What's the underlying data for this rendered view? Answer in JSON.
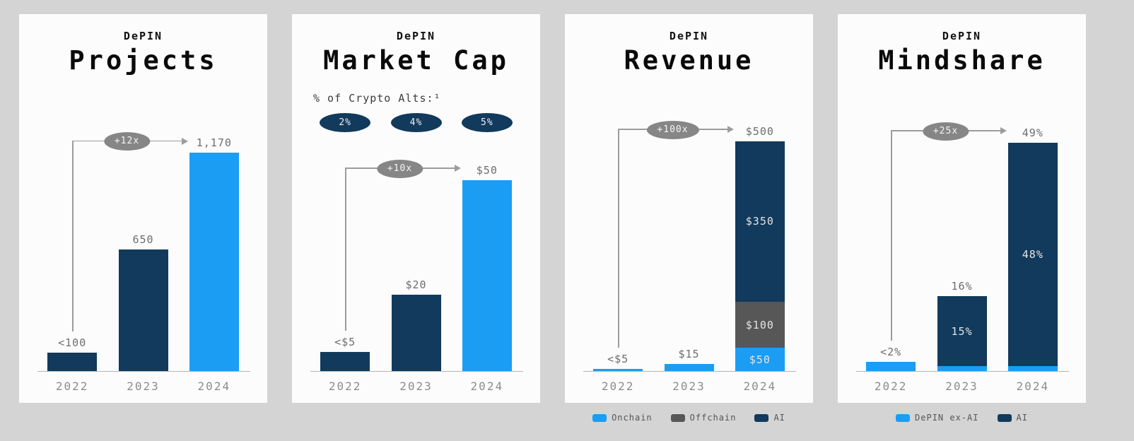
{
  "colors": {
    "page_bg": "#d4d4d4",
    "panel_bg": "#fcfcfc",
    "navy": "#113a5c",
    "blue": "#1b9df4",
    "offchain_gray": "#575757",
    "badge_gray": "#868686",
    "arrow_gray": "#9c9c9c",
    "axis_gray": "#b5b5b5",
    "value_label_gray": "#6d6d6d",
    "tick_gray": "#8c8c8c",
    "segment_label_gray": "#e5e5e5"
  },
  "panels": [
    {
      "kicker": "DePIN",
      "title": "Projects"
    },
    {
      "kicker": "DePIN",
      "title": "Market Cap",
      "subtitle": "% of Crypto Alts:¹"
    },
    {
      "kicker": "DePIN",
      "title": "Revenue",
      "legend": [
        {
          "label": "Onchain",
          "color": "blue"
        },
        {
          "label": "Offchain",
          "color": "offchain_gray"
        },
        {
          "label": "AI",
          "color": "navy"
        }
      ]
    },
    {
      "kicker": "DePIN",
      "title": "Mindshare",
      "legend": [
        {
          "label": "DePIN ex-AI",
          "color": "blue"
        },
        {
          "label": "AI",
          "color": "navy"
        }
      ]
    }
  ],
  "chart_data": [
    {
      "type": "bar",
      "title": "DePIN Projects",
      "categories": [
        "2022",
        "2023",
        "2024"
      ],
      "values": [
        100,
        650,
        1170
      ],
      "value_labels": [
        "<100",
        "650",
        "1,170"
      ],
      "bar_colors": [
        "navy",
        "navy",
        "blue"
      ],
      "annotation": "+12x",
      "ylim": [
        0,
        1250
      ],
      "grid": false
    },
    {
      "type": "bar",
      "title": "DePIN Market Cap",
      "subtitle": "% of Crypto Alts:¹",
      "pct_of_crypto_alts": [
        "2%",
        "4%",
        "5%"
      ],
      "categories": [
        "2022",
        "2023",
        "2024"
      ],
      "values": [
        5,
        20,
        50
      ],
      "value_labels": [
        "<$5",
        "$20",
        "$50"
      ],
      "bar_colors": [
        "navy",
        "navy",
        "blue"
      ],
      "annotation": "+10x",
      "ylim": [
        0,
        61
      ],
      "grid": false
    },
    {
      "type": "bar",
      "stacked": true,
      "title": "DePIN Revenue",
      "categories": [
        "2022",
        "2023",
        "2024"
      ],
      "series": [
        {
          "name": "Onchain",
          "color": "blue",
          "values": [
            5,
            15,
            50
          ],
          "segment_labels": [
            null,
            null,
            "$50"
          ]
        },
        {
          "name": "Offchain",
          "color": "offchain_gray",
          "values": [
            0,
            0,
            100
          ],
          "segment_labels": [
            null,
            null,
            "$100"
          ]
        },
        {
          "name": "AI",
          "color": "navy",
          "values": [
            0,
            0,
            350
          ],
          "segment_labels": [
            null,
            null,
            "$350"
          ]
        }
      ],
      "total_labels": [
        "<$5",
        "$15",
        "$500"
      ],
      "annotation": "+100x",
      "ylim": [
        0,
        507
      ],
      "legend_position": "bottom",
      "grid": false
    },
    {
      "type": "bar",
      "stacked": true,
      "title": "DePIN Mindshare",
      "categories": [
        "2022",
        "2023",
        "2024"
      ],
      "series": [
        {
          "name": "DePIN ex-AI",
          "color": "blue",
          "values": [
            2,
            1,
            1
          ]
        },
        {
          "name": "AI",
          "color": "navy",
          "values": [
            0,
            15,
            48
          ],
          "segment_labels": [
            null,
            "15%",
            "48%"
          ]
        }
      ],
      "total_labels": [
        "<2%",
        "16%",
        "49%"
      ],
      "annotation": "+25x",
      "ylim": [
        0,
        50
      ],
      "legend_position": "bottom",
      "grid": false
    }
  ]
}
